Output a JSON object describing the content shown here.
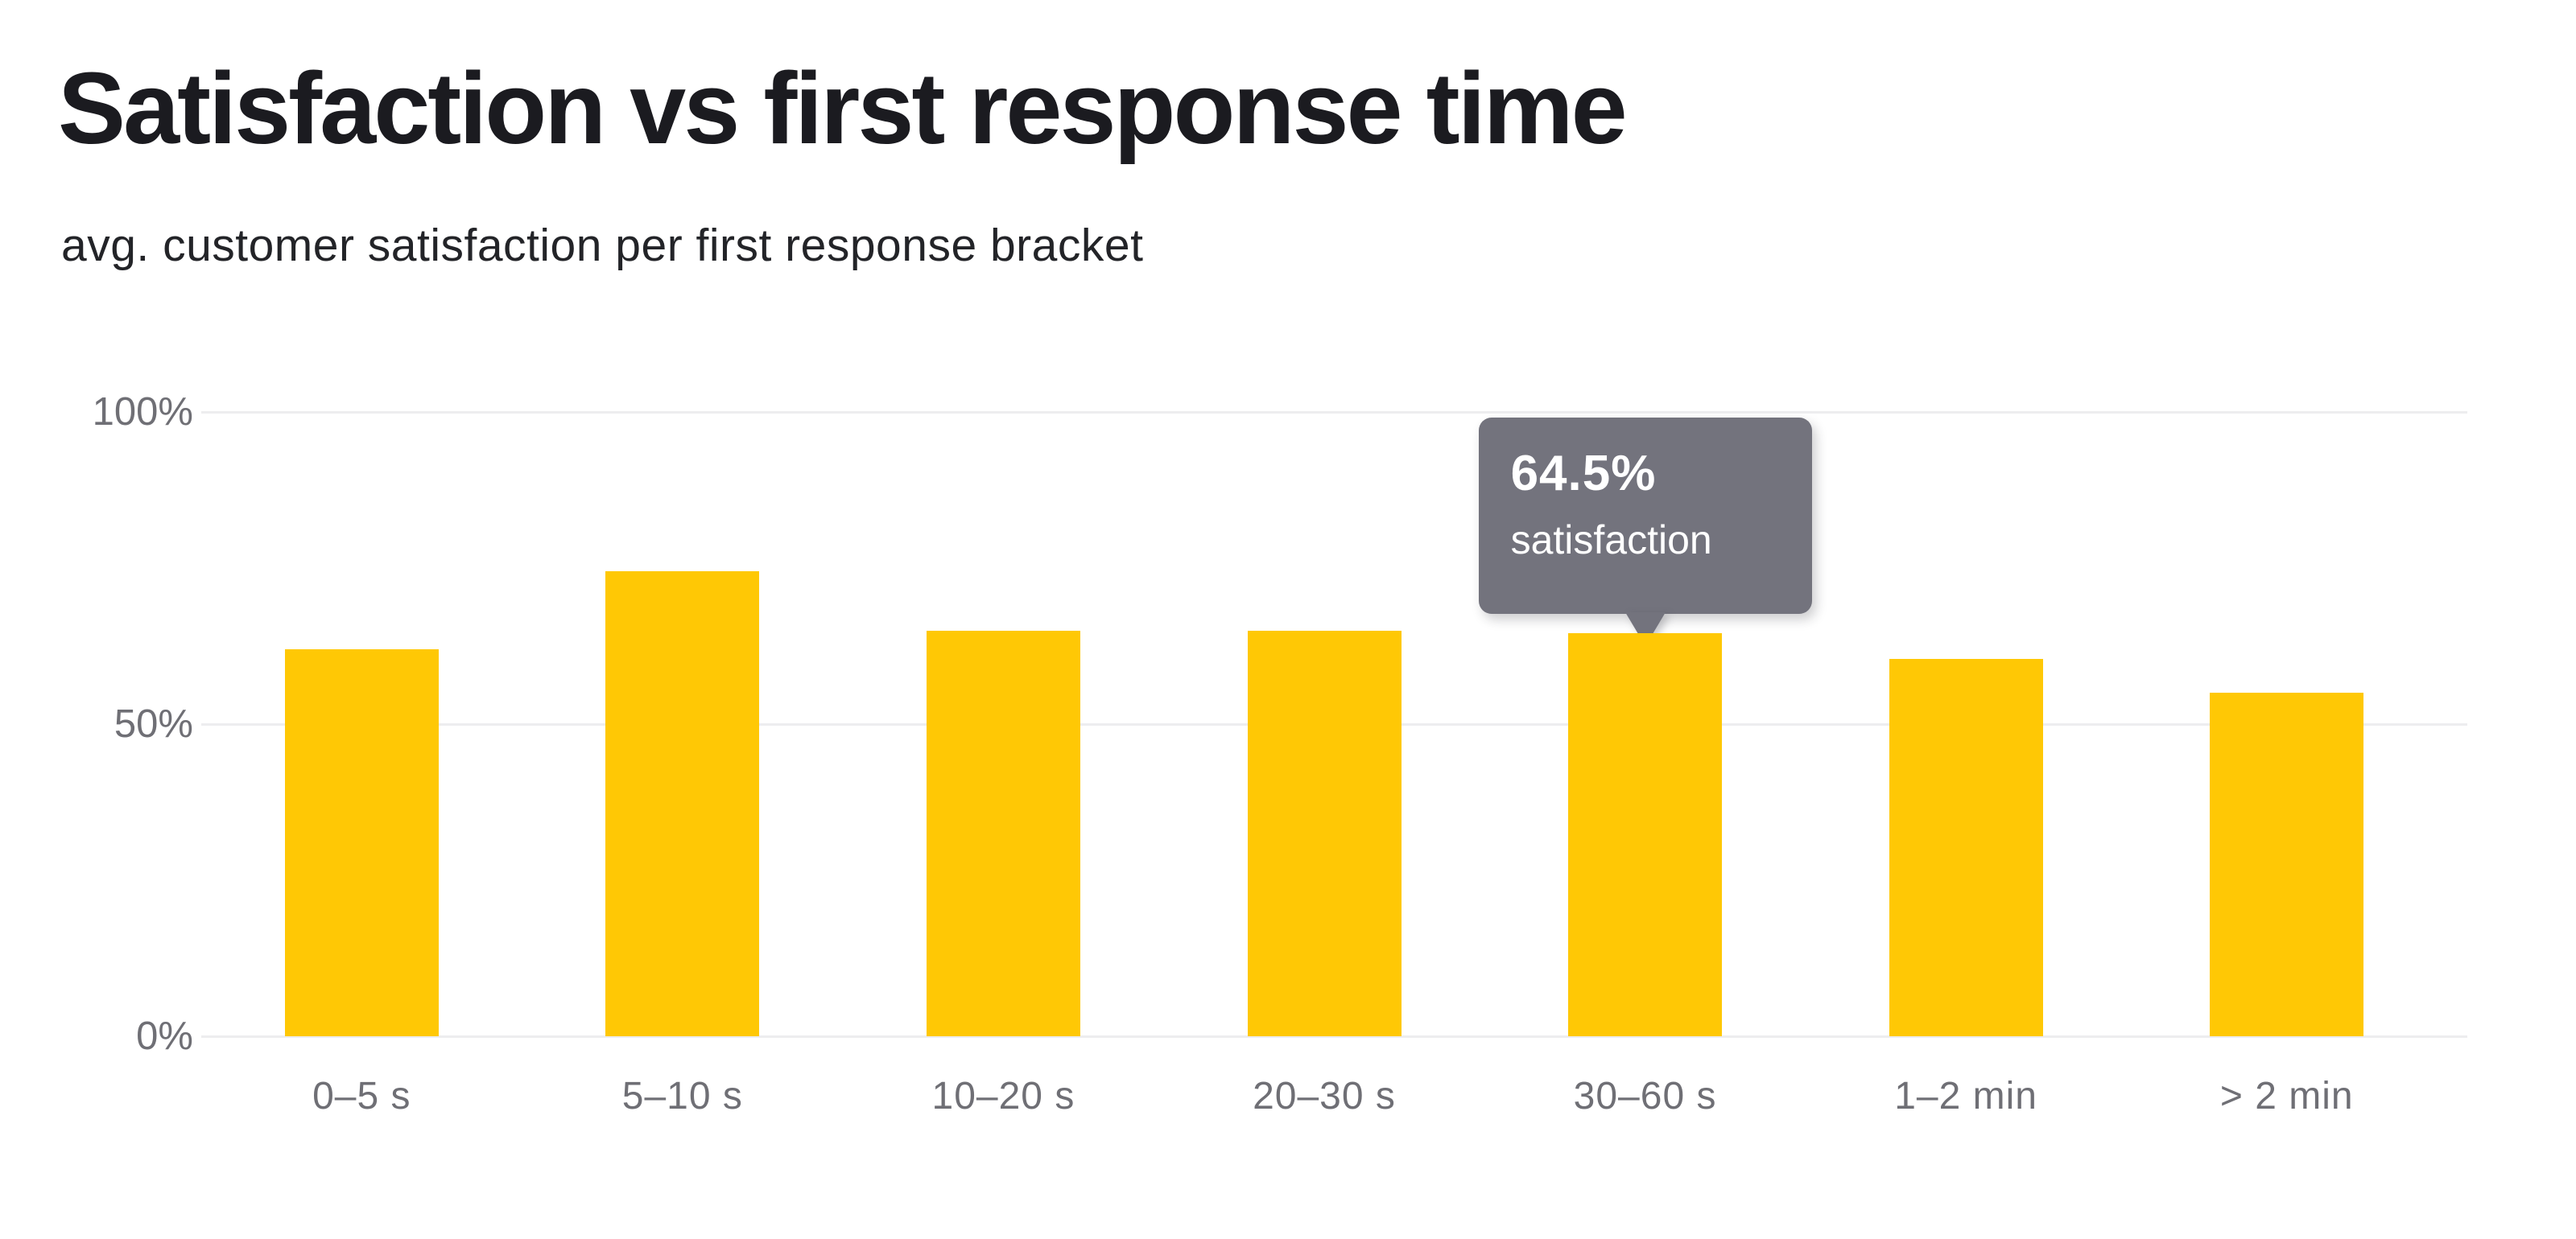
{
  "header": {
    "title": "Satisfaction vs first response time",
    "subtitle": "avg. customer satisfaction per first response bracket"
  },
  "chart_data": {
    "type": "bar",
    "title": "Satisfaction vs first response time",
    "subtitle": "avg. customer satisfaction per first response bracket",
    "categories": [
      "0–5 s",
      "5–10 s",
      "10–20 s",
      "20–30 s",
      "30–60 s",
      "1–2 min",
      "> 2 min"
    ],
    "values": [
      62,
      74.5,
      65,
      65,
      64.5,
      60.5,
      55
    ],
    "unit": "%",
    "xlabel": "",
    "ylabel": "",
    "ylim": [
      0,
      100
    ],
    "yticks": [
      {
        "label": "100%",
        "value": 100
      },
      {
        "label": "50%",
        "value": 50
      },
      {
        "label": "0%",
        "value": 0
      }
    ],
    "grid": "horizontal",
    "legend": "none",
    "bar_color": "#ffc805"
  },
  "tooltip": {
    "category": "30–60 s",
    "value": "64.5%",
    "label": "satisfaction",
    "bg_color": "#73737d",
    "text_color": "#ffffff"
  },
  "colors": {
    "background": "#ffffff",
    "title_text": "#1b1b20",
    "subtitle_text": "#232428",
    "axis_text": "#6f6f75",
    "gridline": "#ededef",
    "bar": "#ffc805",
    "tooltip_bg": "#73737d"
  }
}
